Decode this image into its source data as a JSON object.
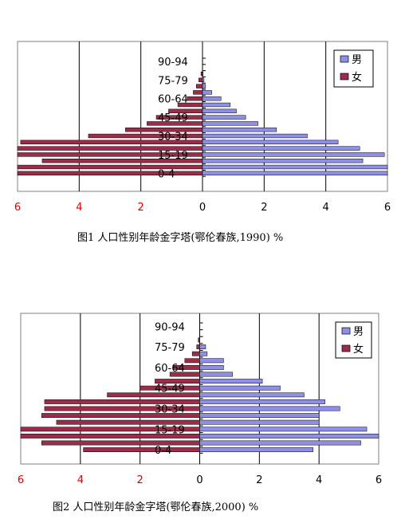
{
  "colors": {
    "male": "#8f8fe8",
    "female": "#9b2d4a",
    "axis_neg_labels": "#e00000"
  },
  "chart_data": [
    {
      "type": "bar",
      "orientation": "horizontal",
      "caption": "图1  人口性别年龄金字塔(鄂伦春族,1990) %",
      "legend": {
        "placement": "top-right",
        "entries": [
          "男",
          "女"
        ]
      },
      "x_tick_labels": [
        "6",
        "4",
        "2",
        "0",
        "2",
        "4",
        "6"
      ],
      "xlim": [
        -6,
        6
      ],
      "y_tick_labels": [
        "90-94",
        "75-79",
        "60-64",
        "45-49",
        "30-34",
        "15-19",
        "0-4"
      ],
      "categories": [
        "0-4",
        "5-9",
        "10-14",
        "15-19",
        "20-24",
        "25-29",
        "30-34",
        "35-39",
        "40-44",
        "45-49",
        "50-54",
        "55-59",
        "60-64",
        "65-69",
        "70-74",
        "75-79",
        "80-84",
        "85-89",
        "90-94"
      ],
      "series": [
        {
          "name": "男",
          "values": [
            6.0,
            6.0,
            5.2,
            5.9,
            5.1,
            4.4,
            3.4,
            2.4,
            1.8,
            1.4,
            1.1,
            0.9,
            0.6,
            0.3,
            0.1,
            0.05,
            0.02,
            0.0,
            0.0
          ]
        },
        {
          "name": "女",
          "values": [
            6.0,
            6.0,
            5.2,
            6.0,
            6.0,
            5.9,
            3.7,
            2.5,
            1.8,
            1.5,
            1.1,
            0.8,
            0.5,
            0.3,
            0.2,
            0.12,
            0.05,
            0.0,
            0.0
          ]
        }
      ]
    },
    {
      "type": "bar",
      "orientation": "horizontal",
      "caption": "图2  人口性别年龄金字塔(鄂伦春族,2000) %",
      "legend": {
        "placement": "top-right",
        "entries": [
          "男",
          "女"
        ]
      },
      "x_tick_labels": [
        "6",
        "4",
        "2",
        "0",
        "2",
        "4",
        "6"
      ],
      "xlim": [
        -6,
        6
      ],
      "y_tick_labels": [
        "90-94",
        "75-79",
        "60-64",
        "45-49",
        "30-34",
        "15-19",
        "0-4"
      ],
      "categories": [
        "0-4",
        "5-9",
        "10-14",
        "15-19",
        "20-24",
        "25-29",
        "30-34",
        "35-39",
        "40-44",
        "45-49",
        "50-54",
        "55-59",
        "60-64",
        "65-69",
        "70-74",
        "75-79",
        "80-84",
        "85-89",
        "90-94"
      ],
      "series": [
        {
          "name": "男",
          "values": [
            3.8,
            5.4,
            6.0,
            5.6,
            4.0,
            4.0,
            4.7,
            4.2,
            3.5,
            2.7,
            2.1,
            1.1,
            0.8,
            0.8,
            0.25,
            0.2,
            0.0,
            0.0,
            0.0
          ]
        },
        {
          "name": "女",
          "values": [
            3.9,
            5.3,
            6.0,
            6.0,
            4.8,
            5.3,
            5.2,
            5.2,
            3.1,
            2.0,
            1.5,
            1.0,
            0.9,
            0.5,
            0.25,
            0.1,
            0.05,
            0.0,
            0.0
          ]
        }
      ]
    }
  ]
}
